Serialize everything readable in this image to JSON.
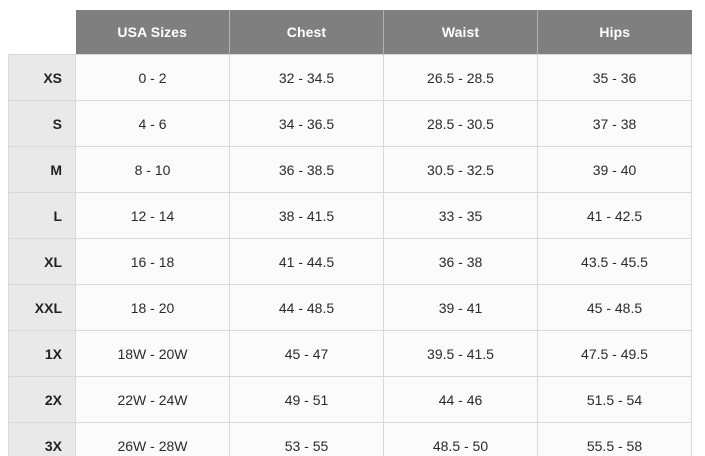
{
  "chart_data": {
    "type": "table",
    "columns": [
      "USA Sizes",
      "Chest",
      "Waist",
      "Hips"
    ],
    "rows": [
      {
        "label": "XS",
        "usa_sizes": "0 - 2",
        "chest": "32 - 34.5",
        "waist": "26.5 - 28.5",
        "hips": "35 - 36"
      },
      {
        "label": "S",
        "usa_sizes": "4 - 6",
        "chest": "34 - 36.5",
        "waist": "28.5 - 30.5",
        "hips": "37 - 38"
      },
      {
        "label": "M",
        "usa_sizes": "8 - 10",
        "chest": "36 - 38.5",
        "waist": "30.5 - 32.5",
        "hips": "39 - 40"
      },
      {
        "label": "L",
        "usa_sizes": "12 - 14",
        "chest": "38 - 41.5",
        "waist": "33 - 35",
        "hips": "41 - 42.5"
      },
      {
        "label": "XL",
        "usa_sizes": "16 - 18",
        "chest": "41 - 44.5",
        "waist": "36 - 38",
        "hips": "43.5 - 45.5"
      },
      {
        "label": "XXL",
        "usa_sizes": "18 - 20",
        "chest": "44 - 48.5",
        "waist": "39 - 41",
        "hips": "45 - 48.5"
      },
      {
        "label": "1X",
        "usa_sizes": "18W - 20W",
        "chest": "45 - 47",
        "waist": "39.5 - 41.5",
        "hips": "47.5 - 49.5"
      },
      {
        "label": "2X",
        "usa_sizes": "22W - 24W",
        "chest": "49 - 51",
        "waist": "44 - 46",
        "hips": "51.5 - 54"
      },
      {
        "label": "3X",
        "usa_sizes": "26W - 28W",
        "chest": "53 - 55",
        "waist": "48.5 - 50",
        "hips": "55.5 - 58"
      }
    ],
    "layout": {
      "header_position": "top",
      "row_labels_position": "left",
      "grid": true
    }
  },
  "colors": {
    "header_bg": "#7f7f7f",
    "header_text": "#ffffff",
    "header_divider": "#b2b2b2",
    "row_label_bg": "#e9e9e9",
    "cell_bg": "#fbfbfb",
    "border": "#d9d9d9",
    "text": "#2b2b2b",
    "page_bg": "#ffffff"
  }
}
